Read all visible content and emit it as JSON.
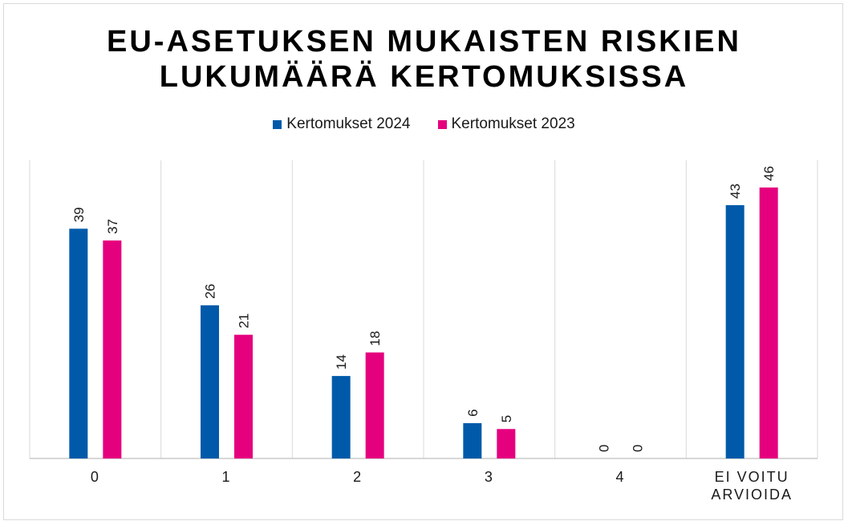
{
  "chart_data": {
    "type": "bar",
    "title_lines": [
      "EU-ASETUKSEN MUKAISTEN RISKIEN",
      "LUKUMÄÄRÄ KERTOMUKSISSA"
    ],
    "categories": [
      [
        "0"
      ],
      [
        "1"
      ],
      [
        "2"
      ],
      [
        "3"
      ],
      [
        "4"
      ],
      [
        "EI VOITU",
        "ARVIOIDA"
      ]
    ],
    "series": [
      {
        "name": "Kertomukset 2024",
        "color": "#005AA9",
        "values": [
          39,
          26,
          14,
          6,
          0,
          43
        ]
      },
      {
        "name": "Kertomukset 2023",
        "color": "#E5007E",
        "values": [
          37,
          21,
          18,
          5,
          0,
          46
        ]
      }
    ],
    "ylim": [
      0,
      50
    ],
    "grid": "vertical-category-separators",
    "legend_position": "top"
  }
}
